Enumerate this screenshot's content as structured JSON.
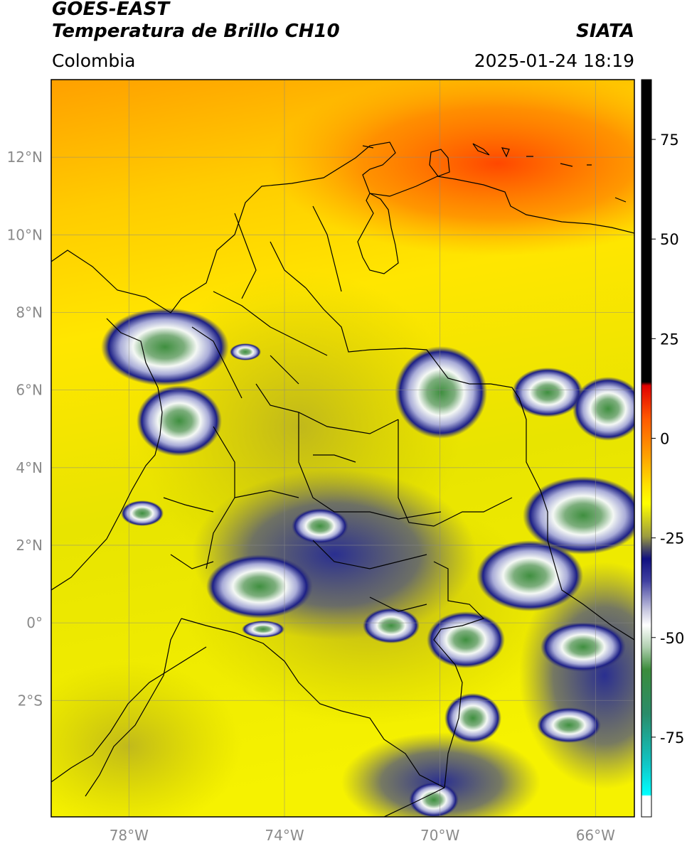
{
  "header": {
    "satellite": "GOES-EAST",
    "product": "Temperatura de Brillo CH10",
    "organization": "SIATA",
    "region": "Colombia",
    "timestamp": "2025-01-24 18:19"
  },
  "map": {
    "lon_range": [
      -80,
      -65
    ],
    "lat_range": [
      -5,
      14
    ],
    "lat_ticks": [
      {
        "value": 12,
        "label": "12°N"
      },
      {
        "value": 10,
        "label": "10°N"
      },
      {
        "value": 8,
        "label": "8°N"
      },
      {
        "value": 6,
        "label": "6°N"
      },
      {
        "value": 4,
        "label": "4°N"
      },
      {
        "value": 2,
        "label": "2°N"
      },
      {
        "value": 0,
        "label": "0°"
      },
      {
        "value": -2,
        "label": "2°S"
      }
    ],
    "lon_ticks": [
      {
        "value": -78,
        "label": "78°W"
      },
      {
        "value": -74,
        "label": "74°W"
      },
      {
        "value": -70,
        "label": "70°W"
      },
      {
        "value": -66,
        "label": "66°W"
      }
    ],
    "gridlines": true
  },
  "colorbar": {
    "range": [
      -95,
      90
    ],
    "ticks": [
      {
        "value": 75,
        "label": "75"
      },
      {
        "value": 50,
        "label": "50"
      },
      {
        "value": 25,
        "label": "25"
      },
      {
        "value": 0,
        "label": "0"
      },
      {
        "value": -25,
        "label": "-25"
      },
      {
        "value": -50,
        "label": "-50"
      },
      {
        "value": -75,
        "label": "-75"
      }
    ],
    "colors": {
      "warm": "#ff3300",
      "hot": "#000000",
      "mid": "#ffff00",
      "cold_blue": "#1a1a80",
      "cold_white": "#ffffff",
      "cold_green": "#3c8c3c",
      "cold_cyan": "#00e0e0"
    }
  }
}
